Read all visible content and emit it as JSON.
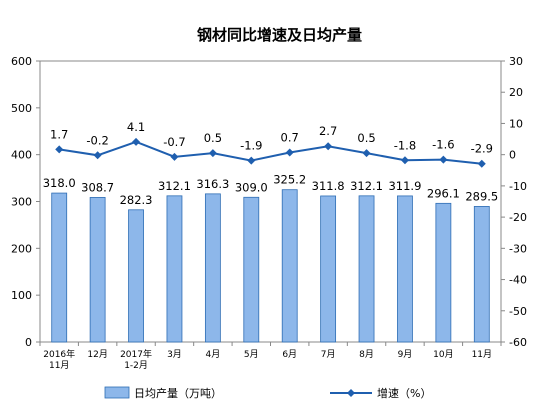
{
  "chart_data": {
    "type": "bar+line",
    "title": "钢材同比增速及日均产量",
    "categories": [
      [
        "2016年",
        "11月"
      ],
      [
        "12月"
      ],
      [
        "2017年",
        "1-2月"
      ],
      [
        "3月"
      ],
      [
        "4月"
      ],
      [
        "5月"
      ],
      [
        "6月"
      ],
      [
        "7月"
      ],
      [
        "8月"
      ],
      [
        "9月"
      ],
      [
        "10月"
      ],
      [
        "11月"
      ]
    ],
    "series": [
      {
        "name": "日均产量（万吨）",
        "type": "bar",
        "axis": "left",
        "color": "#8DB7EA",
        "edge_color": "#2E6DB4",
        "values": [
          318.0,
          308.7,
          282.3,
          312.1,
          316.3,
          309.0,
          325.2,
          311.8,
          312.1,
          311.9,
          296.1,
          289.5
        ],
        "labels": [
          "318.0",
          "308.7",
          "282.3",
          "312.1",
          "316.3",
          "309.0",
          "325.2",
          "311.8",
          "312.1",
          "311.9",
          "296.1",
          "289.5"
        ]
      },
      {
        "name": "增速（%）",
        "type": "line",
        "axis": "right",
        "color": "#1F5FAF",
        "values": [
          1.7,
          -0.2,
          4.1,
          -0.7,
          0.5,
          -1.9,
          0.7,
          2.7,
          0.5,
          -1.8,
          -1.6,
          -2.9
        ],
        "labels": [
          "1.7",
          "-0.2",
          "4.1",
          "-0.7",
          "0.5",
          "-1.9",
          "0.7",
          "2.7",
          "0.5",
          "-1.8",
          "-1.6",
          "-2.9"
        ]
      }
    ],
    "y_left": {
      "min": 0,
      "max": 600,
      "step": 100
    },
    "y_right": {
      "min": -60,
      "max": 30,
      "step": 10
    },
    "grid": false,
    "legend": "bottom"
  }
}
